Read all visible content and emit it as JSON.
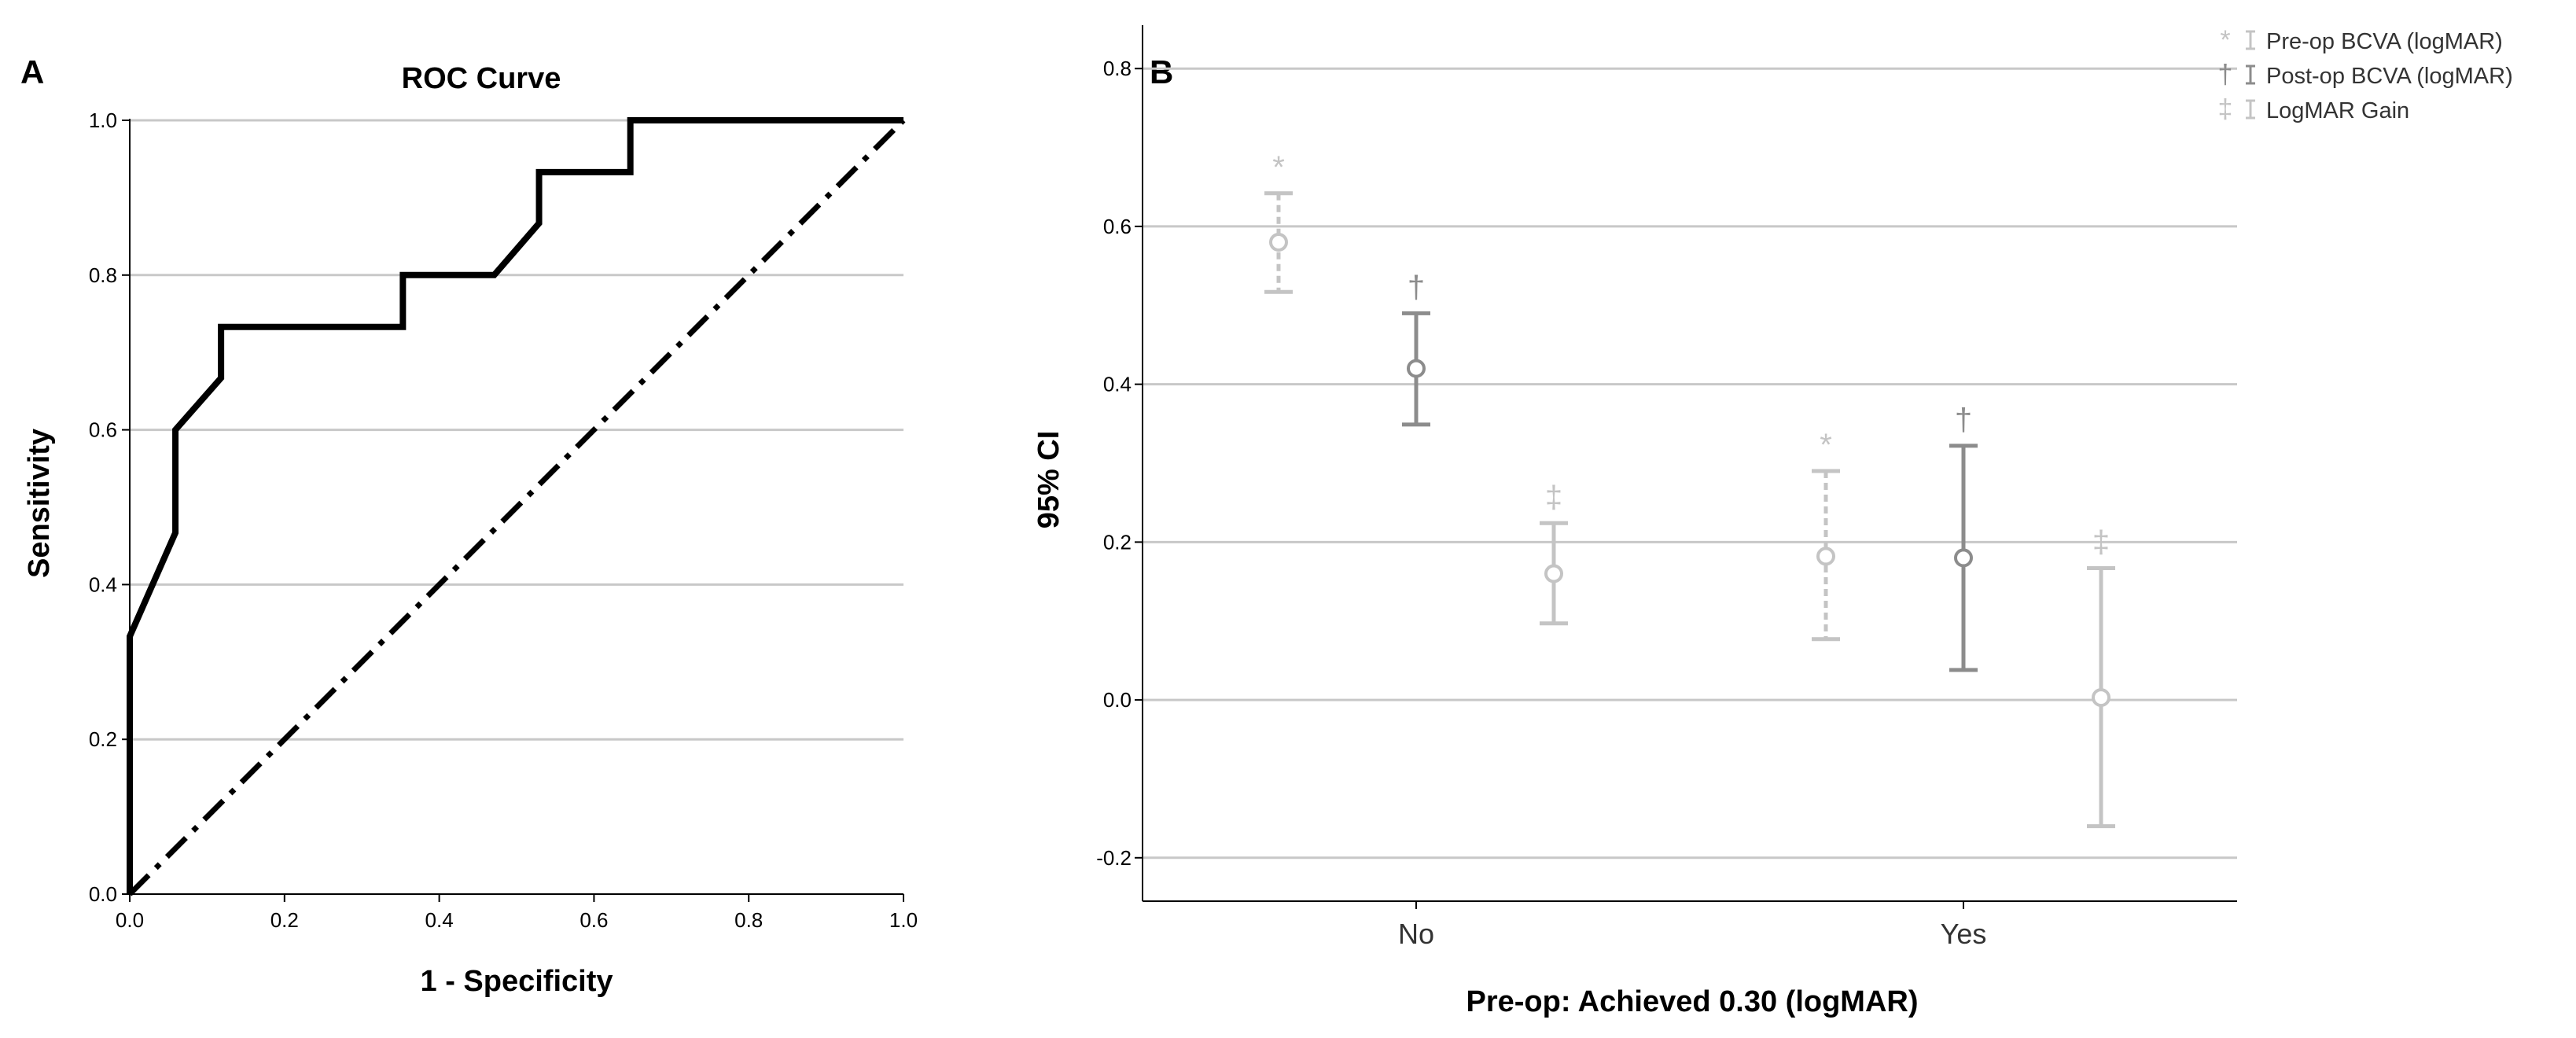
{
  "panels": [
    {
      "letter": "A",
      "chart_data": {
        "type": "line",
        "title": "ROC Curve",
        "xlabel": "1 - Specificity",
        "ylabel": "Sensitivity",
        "xlim": [
          0,
          1
        ],
        "ylim": [
          0,
          1
        ],
        "x_ticks": [
          0.0,
          0.2,
          0.4,
          0.6,
          0.8,
          1.0
        ],
        "y_ticks": [
          0.0,
          0.2,
          0.4,
          0.6,
          0.8,
          1.0
        ],
        "x_tick_labels": [
          "0.0",
          "0.2",
          "0.4",
          "0.6",
          "0.8",
          "1.0"
        ],
        "y_tick_labels": [
          "0.0",
          "0.2",
          "0.4",
          "0.6",
          "0.8",
          "1.0"
        ],
        "grid": "horizontal",
        "series": [
          {
            "style": "solid-step",
            "color": "#000000",
            "points": [
              [
                0.0,
                0.0
              ],
              [
                0.0,
                0.333
              ],
              [
                0.059,
                0.467
              ],
              [
                0.059,
                0.6
              ],
              [
                0.118,
                0.667
              ],
              [
                0.118,
                0.733
              ],
              [
                0.353,
                0.733
              ],
              [
                0.353,
                0.8
              ],
              [
                0.471,
                0.8
              ],
              [
                0.529,
                0.867
              ],
              [
                0.529,
                0.933
              ],
              [
                0.647,
                0.933
              ],
              [
                0.647,
                1.0
              ],
              [
                1.0,
                1.0
              ]
            ]
          },
          {
            "style": "dash-dot-reference",
            "color": "#000000",
            "points": [
              [
                0.0,
                0.0
              ],
              [
                1.0,
                1.0
              ]
            ]
          }
        ]
      }
    },
    {
      "letter": "B",
      "chart_data": {
        "type": "errorbar",
        "title": "",
        "xlabel": "Pre-op: Achieved 0.30 (logMAR)",
        "ylabel": "95% CI",
        "ylim": [
          -0.255,
          0.855
        ],
        "y_ticks": [
          -0.2,
          0.0,
          0.2,
          0.4,
          0.6,
          0.8
        ],
        "y_tick_labels": [
          "-0.2",
          "0.0",
          "0.2",
          "0.4",
          "0.6",
          "0.8"
        ],
        "categories": [
          "No",
          "Yes"
        ],
        "grid": "horizontal",
        "legend_position": "top-right",
        "series": [
          {
            "name": "Pre-op BCVA (logMAR)",
            "symbol": "*",
            "color": "#c4c4c4",
            "dashed": true,
            "points": [
              {
                "category": "No",
                "mean": 0.58,
                "lower": 0.517,
                "upper": 0.642
              },
              {
                "category": "Yes",
                "mean": 0.182,
                "lower": 0.077,
                "upper": 0.29
              }
            ]
          },
          {
            "name": "Post-op BCVA (logMAR)",
            "symbol": "†",
            "color": "#8c8c8c",
            "dashed": false,
            "points": [
              {
                "category": "No",
                "mean": 0.42,
                "lower": 0.349,
                "upper": 0.49
              },
              {
                "category": "Yes",
                "mean": 0.18,
                "lower": 0.038,
                "upper": 0.322
              }
            ]
          },
          {
            "name": "LogMAR Gain",
            "symbol": "‡",
            "color": "#c4c4c4",
            "dashed": false,
            "points": [
              {
                "category": "No",
                "mean": 0.16,
                "lower": 0.097,
                "upper": 0.224
              },
              {
                "category": "Yes",
                "mean": 0.003,
                "lower": -0.16,
                "upper": 0.167
              }
            ]
          }
        ]
      }
    }
  ]
}
